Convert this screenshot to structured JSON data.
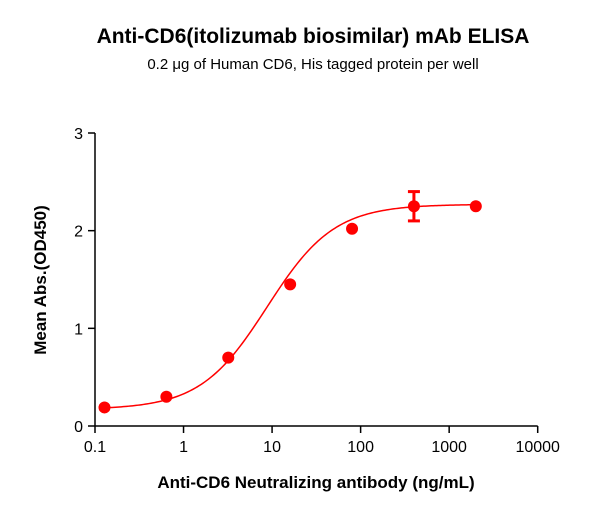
{
  "chart_data": {
    "type": "scatter",
    "title": "Anti-CD6(itolizumab biosimilar) mAb ELISA",
    "subtitle": "0.2 μg of Human CD6, His tagged protein per well",
    "xlabel": "Anti-CD6 Neutralizing antibody (ng/mL)",
    "ylabel": "Mean Abs.(OD450)",
    "xscale": "log",
    "xlim": [
      0.1,
      10000
    ],
    "ylim": [
      0,
      3
    ],
    "xticks": [
      "0.1",
      "1",
      "10",
      "100",
      "1000",
      "10000"
    ],
    "yticks": [
      "0",
      "1",
      "2",
      "3"
    ],
    "grid": false,
    "color": "#ff0000",
    "fit_curve": "sigmoidal (4-parameter logistic)",
    "series": [
      {
        "x": [
          0.128,
          0.64,
          3.2,
          16,
          80,
          400,
          2000
        ],
        "y": [
          0.19,
          0.3,
          0.7,
          1.45,
          2.02,
          2.25,
          2.25
        ],
        "error": [
          0,
          0,
          0,
          0,
          0,
          0.15,
          0
        ]
      }
    ]
  }
}
